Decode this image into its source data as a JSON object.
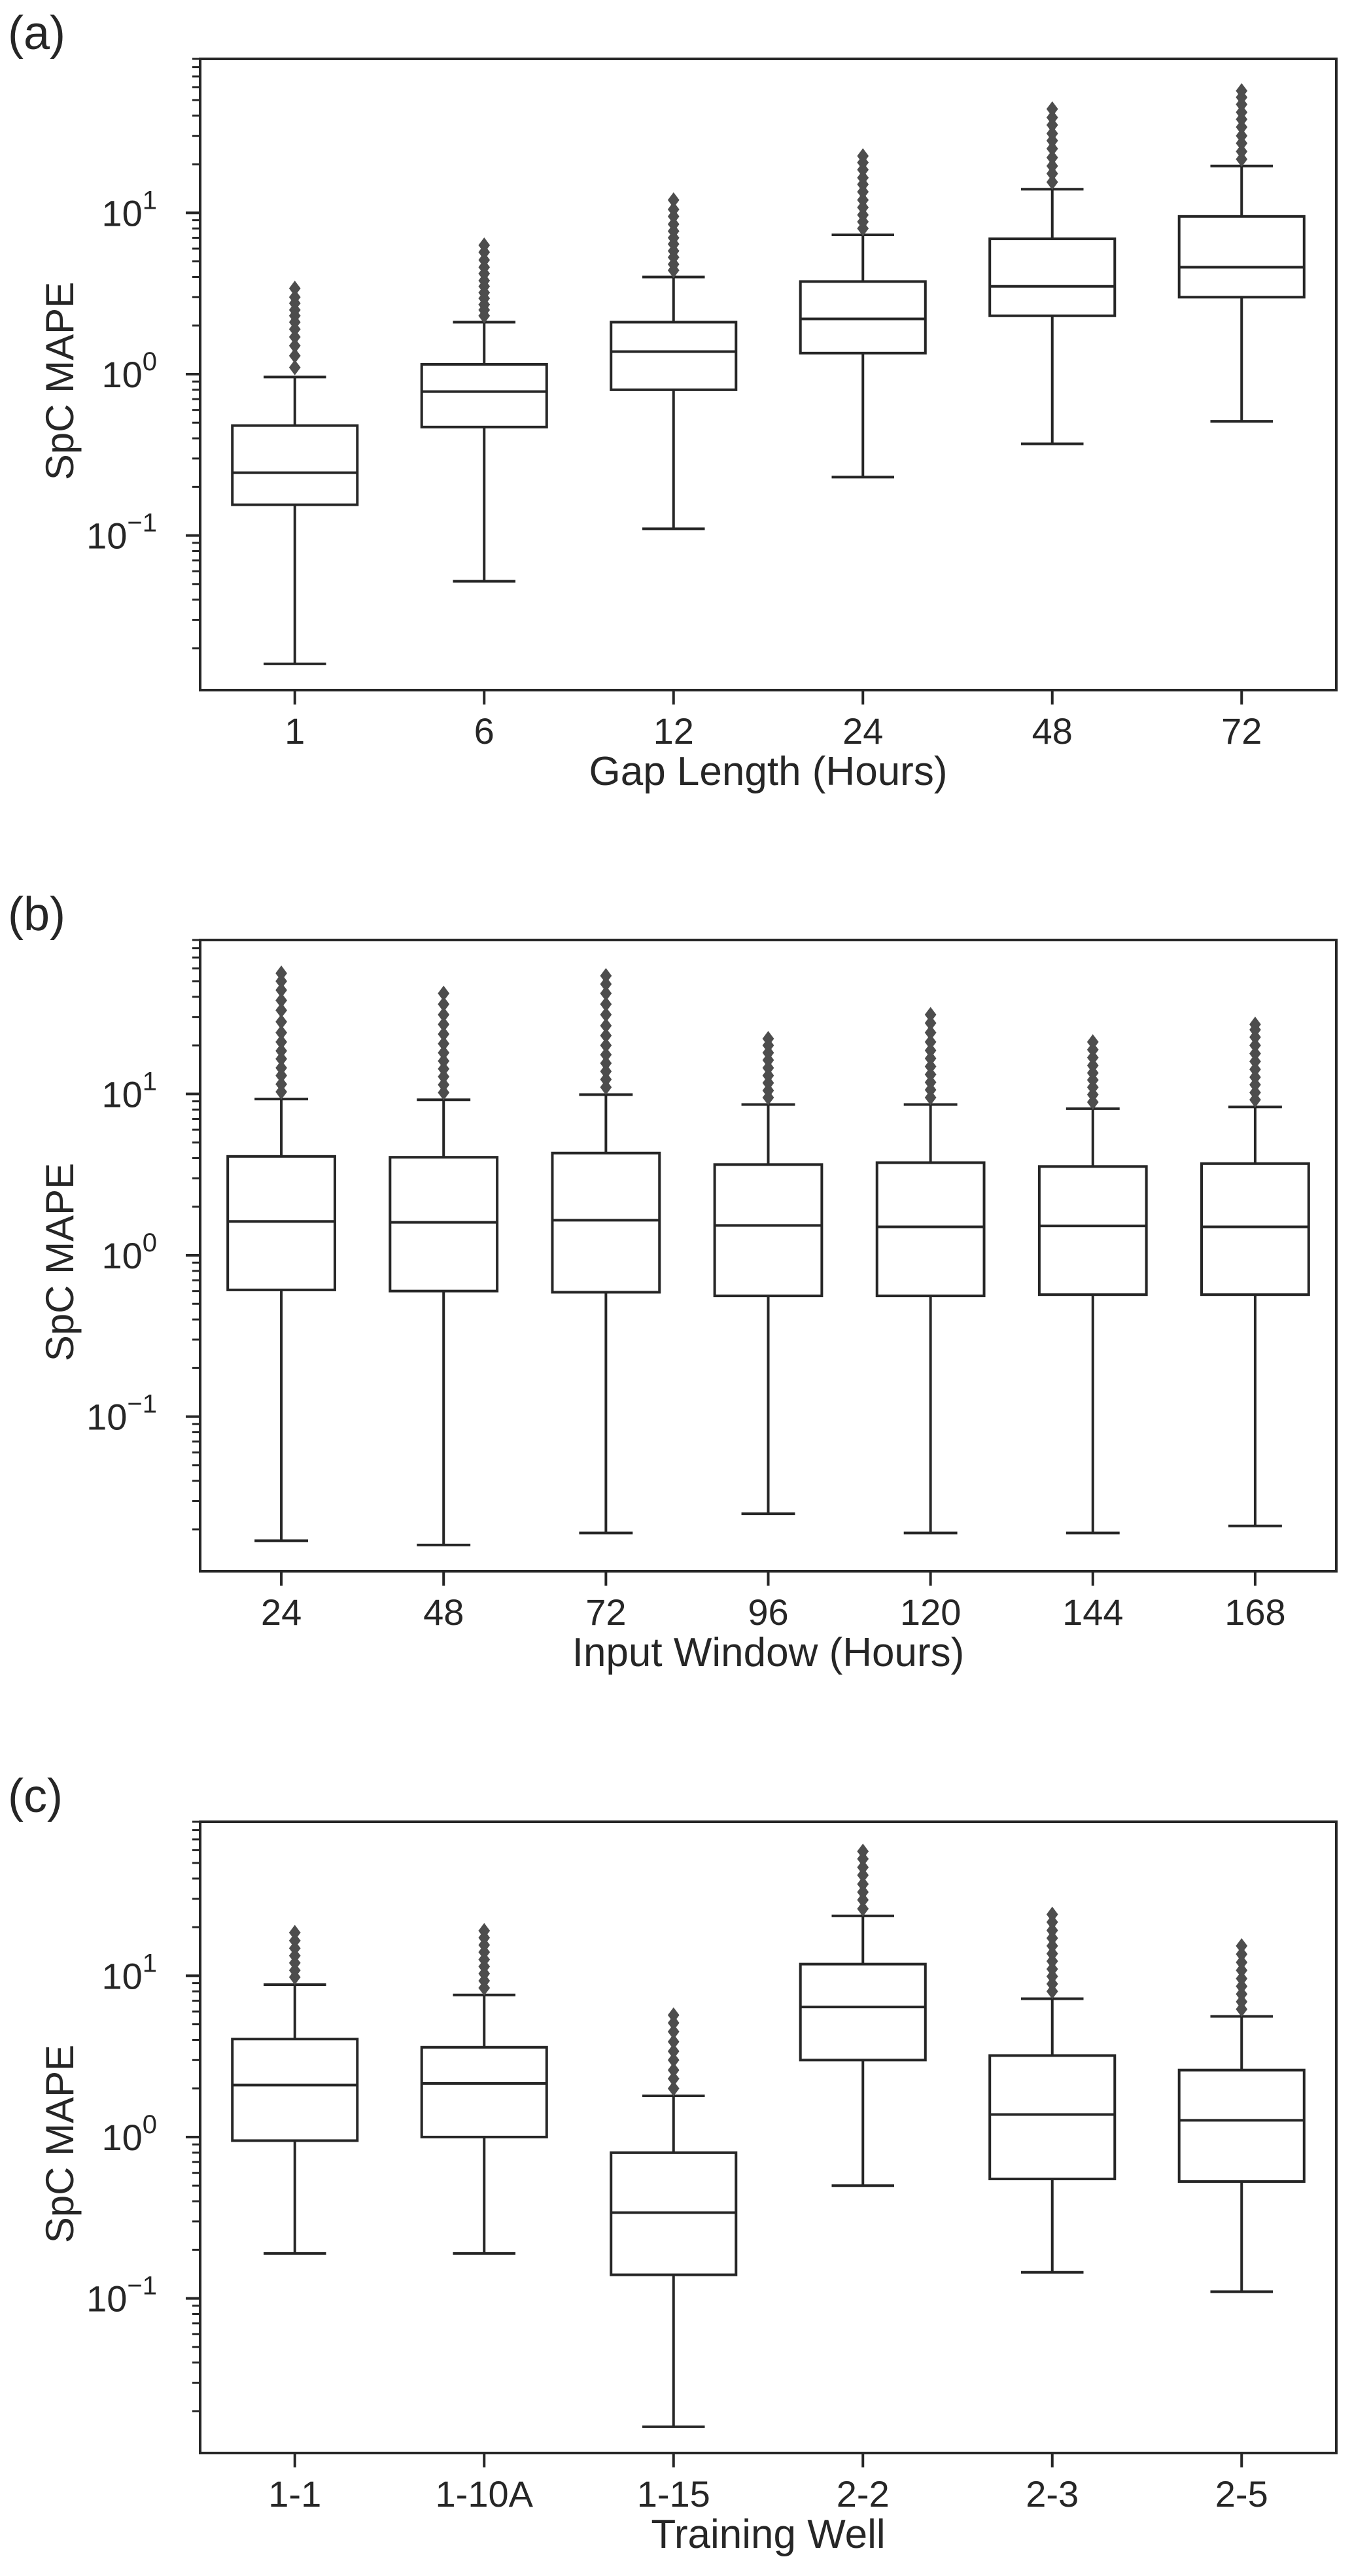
{
  "chart_data": [
    {
      "panel_label": "(a)",
      "type": "boxplot",
      "xlabel": "Gap Length (Hours)",
      "ylabel": "SpC MAPE",
      "yscale": "log",
      "ylim": [
        0.011,
        90
      ],
      "yticks": [
        {
          "value": 0.1,
          "base": "10",
          "exp": "−1"
        },
        {
          "value": 1,
          "base": "10",
          "exp": "0"
        },
        {
          "value": 10,
          "base": "10",
          "exp": "1"
        }
      ],
      "categories": [
        "1",
        "6",
        "12",
        "24",
        "48",
        "72"
      ],
      "boxes": [
        {
          "q1": 0.155,
          "median": 0.245,
          "q3": 0.48,
          "whislo": 0.016,
          "whishi": 0.96,
          "fliers": [
            1.1,
            1.3,
            1.5,
            1.7,
            1.9,
            2.1,
            2.3,
            2.5,
            2.75,
            3.0,
            3.4
          ]
        },
        {
          "q1": 0.47,
          "median": 0.78,
          "q3": 1.15,
          "whislo": 0.052,
          "whishi": 2.1,
          "fliers": [
            2.3,
            2.5,
            2.7,
            2.95,
            3.2,
            3.5,
            3.8,
            4.2,
            4.6,
            5.1,
            5.7,
            6.3
          ]
        },
        {
          "q1": 0.8,
          "median": 1.38,
          "q3": 2.1,
          "whislo": 0.11,
          "whishi": 4.0,
          "fliers": [
            4.4,
            4.8,
            5.3,
            5.8,
            6.4,
            7.0,
            7.7,
            8.5,
            9.5,
            10.5,
            12.0
          ]
        },
        {
          "q1": 1.35,
          "median": 2.2,
          "q3": 3.75,
          "whislo": 0.23,
          "whishi": 7.3,
          "fliers": [
            8.0,
            8.8,
            9.7,
            10.8,
            12.0,
            13.5,
            15.0,
            16.5,
            18.5,
            20.5,
            22.5
          ]
        },
        {
          "q1": 2.3,
          "median": 3.5,
          "q3": 6.9,
          "whislo": 0.37,
          "whishi": 14.0,
          "fliers": [
            15.5,
            17.5,
            19.5,
            22.0,
            25.0,
            28.0,
            31.0,
            35.0,
            39.0,
            44.0
          ]
        },
        {
          "q1": 3.0,
          "median": 4.6,
          "q3": 9.5,
          "whislo": 0.51,
          "whishi": 19.5,
          "fliers": [
            21.5,
            24.0,
            27.0,
            30.0,
            34.0,
            38.0,
            42.0,
            47.0,
            52.0,
            57.0
          ]
        }
      ]
    },
    {
      "panel_label": "(b)",
      "type": "boxplot",
      "xlabel": "Input Window (Hours)",
      "ylabel": "SpC MAPE",
      "yscale": "log",
      "ylim": [
        0.011,
        90
      ],
      "yticks": [
        {
          "value": 0.1,
          "base": "10",
          "exp": "−1"
        },
        {
          "value": 1,
          "base": "10",
          "exp": "0"
        },
        {
          "value": 10,
          "base": "10",
          "exp": "1"
        }
      ],
      "categories": [
        "24",
        "48",
        "72",
        "96",
        "120",
        "144",
        "168"
      ],
      "boxes": [
        {
          "q1": 0.61,
          "median": 1.62,
          "q3": 4.1,
          "whislo": 0.017,
          "whishi": 9.3,
          "fliers": [
            10.3,
            11.5,
            13.0,
            14.5,
            16.5,
            18.5,
            21.0,
            24.0,
            28.0,
            33.0,
            38.0,
            44.0,
            50.0,
            56.0
          ]
        },
        {
          "q1": 0.6,
          "median": 1.6,
          "q3": 4.05,
          "whislo": 0.016,
          "whishi": 9.2,
          "fliers": [
            10.2,
            11.4,
            12.8,
            14.3,
            16.0,
            18.0,
            20.5,
            23.5,
            27.0,
            31.0,
            36.0,
            42.0
          ]
        },
        {
          "q1": 0.59,
          "median": 1.65,
          "q3": 4.3,
          "whislo": 0.019,
          "whishi": 9.9,
          "fliers": [
            11.0,
            12.3,
            13.8,
            15.5,
            17.5,
            20.0,
            23.0,
            26.5,
            31.0,
            36.0,
            42.0,
            48.0,
            54.0
          ]
        },
        {
          "q1": 0.56,
          "median": 1.53,
          "q3": 3.65,
          "whislo": 0.025,
          "whishi": 8.6,
          "fliers": [
            9.5,
            10.5,
            11.7,
            13.0,
            14.5,
            16.2,
            18.0,
            20.0,
            22.0
          ]
        },
        {
          "q1": 0.56,
          "median": 1.5,
          "q3": 3.75,
          "whislo": 0.019,
          "whishi": 8.6,
          "fliers": [
            9.5,
            10.6,
            11.8,
            13.2,
            14.8,
            16.6,
            18.6,
            21.0,
            24.0,
            27.5,
            31.0
          ]
        },
        {
          "q1": 0.57,
          "median": 1.52,
          "q3": 3.55,
          "whislo": 0.019,
          "whishi": 8.1,
          "fliers": [
            8.9,
            9.9,
            11.0,
            12.2,
            13.5,
            15.0,
            16.8,
            18.8,
            21.0
          ]
        },
        {
          "q1": 0.57,
          "median": 1.5,
          "q3": 3.7,
          "whislo": 0.021,
          "whishi": 8.3,
          "fliers": [
            9.2,
            10.2,
            11.4,
            12.7,
            14.2,
            15.9,
            17.8,
            20.0,
            22.5,
            25.0,
            27.0
          ]
        }
      ]
    },
    {
      "panel_label": "(c)",
      "type": "boxplot",
      "xlabel": "Training Well",
      "ylabel": "SpC MAPE",
      "yscale": "log",
      "ylim": [
        0.011,
        90
      ],
      "yticks": [
        {
          "value": 0.1,
          "base": "10",
          "exp": "−1"
        },
        {
          "value": 1,
          "base": "10",
          "exp": "0"
        },
        {
          "value": 10,
          "base": "10",
          "exp": "1"
        }
      ],
      "categories": [
        "1-1",
        "1-10A",
        "1-15",
        "2-2",
        "2-3",
        "2-5"
      ],
      "boxes": [
        {
          "q1": 0.95,
          "median": 2.1,
          "q3": 4.05,
          "whislo": 0.19,
          "whishi": 8.8,
          "fliers": [
            9.8,
            10.8,
            12.0,
            13.3,
            14.8,
            16.5,
            18.5
          ]
        },
        {
          "q1": 1.0,
          "median": 2.15,
          "q3": 3.6,
          "whislo": 0.19,
          "whishi": 7.6,
          "fliers": [
            8.4,
            9.3,
            10.3,
            11.4,
            12.6,
            14.0,
            15.5,
            17.2,
            19.0
          ]
        },
        {
          "q1": 0.14,
          "median": 0.34,
          "q3": 0.8,
          "whislo": 0.016,
          "whishi": 1.8,
          "fliers": [
            2.0,
            2.3,
            2.6,
            3.0,
            3.4,
            3.9,
            4.5,
            5.1,
            5.7
          ]
        },
        {
          "q1": 3.0,
          "median": 6.4,
          "q3": 11.8,
          "whislo": 0.5,
          "whishi": 23.5,
          "fliers": [
            26.0,
            29.5,
            33.0,
            37.0,
            42.0,
            47.0,
            53.0,
            59.0
          ]
        },
        {
          "q1": 0.55,
          "median": 1.38,
          "q3": 3.2,
          "whislo": 0.145,
          "whishi": 7.2,
          "fliers": [
            8.0,
            8.9,
            9.9,
            11.0,
            12.3,
            13.7,
            15.3,
            17.1,
            19.1,
            21.5,
            24.0
          ]
        },
        {
          "q1": 0.53,
          "median": 1.27,
          "q3": 2.6,
          "whislo": 0.11,
          "whishi": 5.6,
          "fliers": [
            6.2,
            6.9,
            7.7,
            8.6,
            9.6,
            10.8,
            12.1,
            13.6,
            15.3
          ]
        }
      ]
    }
  ]
}
